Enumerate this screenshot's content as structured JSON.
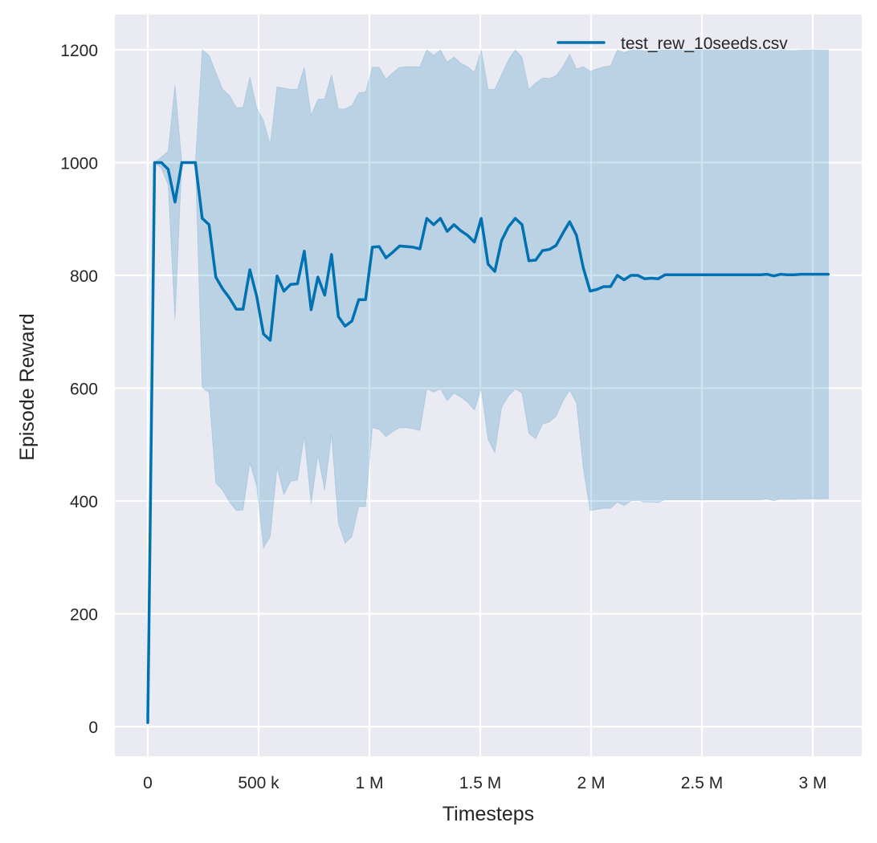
{
  "chart_data": {
    "type": "line",
    "title": "",
    "xlabel": "Timesteps",
    "ylabel": "Episode Reward",
    "xlim": [
      -148600,
      3221000
    ],
    "ylim": [
      -52.7,
      1262.6
    ],
    "grid": true,
    "legend_position": "top-right",
    "background_color": "#eaeaf2",
    "x_ticks": [
      0,
      500000,
      1000000,
      1500000,
      2000000,
      2500000,
      3000000
    ],
    "x_tick_labels": [
      "0",
      "500 k",
      "1 M",
      "1.5 M",
      "2 M",
      "2.5 M",
      "3 M"
    ],
    "y_ticks": [
      0,
      200,
      400,
      600,
      800,
      1000,
      1200
    ],
    "y_tick_labels": [
      "0",
      "200",
      "400",
      "600",
      "800",
      "1000",
      "1200"
    ],
    "series": [
      {
        "name": "test_rew_10seeds.csv",
        "color": "#0072b2",
        "band_color": "#0072b2",
        "x": [
          0,
          30700,
          61400,
          92100,
          122800,
          153500,
          184200,
          214900,
          245600,
          276300,
          307000,
          337700,
          368400,
          399100,
          429800,
          460500,
          491200,
          521900,
          552600,
          583300,
          614000,
          644700,
          675400,
          706100,
          736800,
          767500,
          798200,
          828900,
          859600,
          890300,
          921000,
          951700,
          982400,
          1013100,
          1043800,
          1074500,
          1105200,
          1135900,
          1166600,
          1197300,
          1228000,
          1258700,
          1289400,
          1320100,
          1350800,
          1381500,
          1412200,
          1442900,
          1473600,
          1504300,
          1535000,
          1565700,
          1596400,
          1627100,
          1657800,
          1688500,
          1719200,
          1749900,
          1780600,
          1811300,
          1842000,
          1872700,
          1903400,
          1934100,
          1964800,
          1995500,
          2026200,
          2056900,
          2087600,
          2118300,
          2149000,
          2179700,
          2210400,
          2241100,
          2271800,
          2302500,
          2333200,
          2363900,
          2394600,
          2425300,
          2456000,
          2486700,
          2517400,
          2548100,
          2578800,
          2609500,
          2640200,
          2670900,
          2701600,
          2732300,
          2763000,
          2793700,
          2824400,
          2855100,
          2885800,
          2916500,
          2947200,
          2977900,
          3008600,
          3039300,
          3070000
        ],
        "mean": [
          7,
          1000,
          1000,
          988,
          930,
          1000,
          1000,
          1000,
          901,
          890,
          797,
          776,
          760,
          740,
          740,
          810,
          763,
          696,
          685,
          799,
          772,
          784,
          785,
          843,
          739,
          797,
          765,
          837,
          727,
          710,
          719,
          757,
          757,
          850,
          851,
          831,
          841,
          852,
          851,
          850,
          847,
          901,
          890,
          901,
          878,
          890,
          879,
          871,
          859,
          901,
          820,
          807,
          862,
          886,
          901,
          890,
          826,
          827,
          844,
          846,
          853,
          875,
          895,
          871,
          813,
          772,
          775,
          780,
          780,
          800,
          792,
          800,
          800,
          794,
          795,
          794,
          801,
          801,
          801,
          801,
          801,
          801,
          801,
          801,
          801,
          801,
          801,
          801,
          801,
          801,
          801,
          802,
          799,
          802,
          801,
          801,
          802,
          802,
          802,
          802,
          802
        ],
        "upper": [
          7,
          1000,
          1010,
          1020,
          1137,
          1000,
          1000,
          1000,
          1200,
          1190,
          1160,
          1130,
          1119,
          1097,
          1098,
          1152,
          1097,
          1074,
          1032,
          1134,
          1132,
          1130,
          1130,
          1169,
          1084,
          1112,
          1113,
          1156,
          1095,
          1095,
          1101,
          1124,
          1125,
          1169,
          1169,
          1148,
          1159,
          1169,
          1170,
          1170,
          1170,
          1200,
          1190,
          1200,
          1178,
          1187,
          1176,
          1170,
          1160,
          1200,
          1130,
          1130,
          1156,
          1182,
          1200,
          1187,
          1130,
          1141,
          1150,
          1149,
          1154,
          1170,
          1192,
          1166,
          1170,
          1162,
          1166,
          1170,
          1171,
          1200,
          1195,
          1200,
          1200,
          1198,
          1199,
          1199,
          1200,
          1200,
          1200,
          1200,
          1200,
          1200,
          1200,
          1200,
          1200,
          1200,
          1200,
          1200,
          1200,
          1200,
          1200,
          1200,
          1199,
          1200,
          1199,
          1199,
          1200,
          1200,
          1200,
          1200,
          1200
        ],
        "lower": [
          7,
          1000,
          990,
          960,
          721,
          1000,
          1000,
          1000,
          601,
          592,
          432,
          419,
          398,
          383,
          384,
          468,
          427,
          317,
          337,
          460,
          411,
          435,
          437,
          515,
          395,
          482,
          419,
          518,
          361,
          325,
          337,
          390,
          390,
          530,
          527,
          514,
          523,
          530,
          530,
          528,
          525,
          599,
          593,
          599,
          578,
          591,
          584,
          575,
          561,
          599,
          509,
          486,
          566,
          586,
          599,
          591,
          520,
          510,
          536,
          540,
          550,
          577,
          596,
          574,
          458,
          383,
          385,
          387,
          387,
          398,
          392,
          400,
          401,
          398,
          398,
          397,
          402,
          402,
          402,
          402,
          402,
          402,
          402,
          402,
          402,
          402,
          402,
          402,
          402,
          402,
          402,
          404,
          400,
          404,
          403,
          403,
          404,
          404,
          404,
          404,
          404
        ]
      }
    ]
  }
}
